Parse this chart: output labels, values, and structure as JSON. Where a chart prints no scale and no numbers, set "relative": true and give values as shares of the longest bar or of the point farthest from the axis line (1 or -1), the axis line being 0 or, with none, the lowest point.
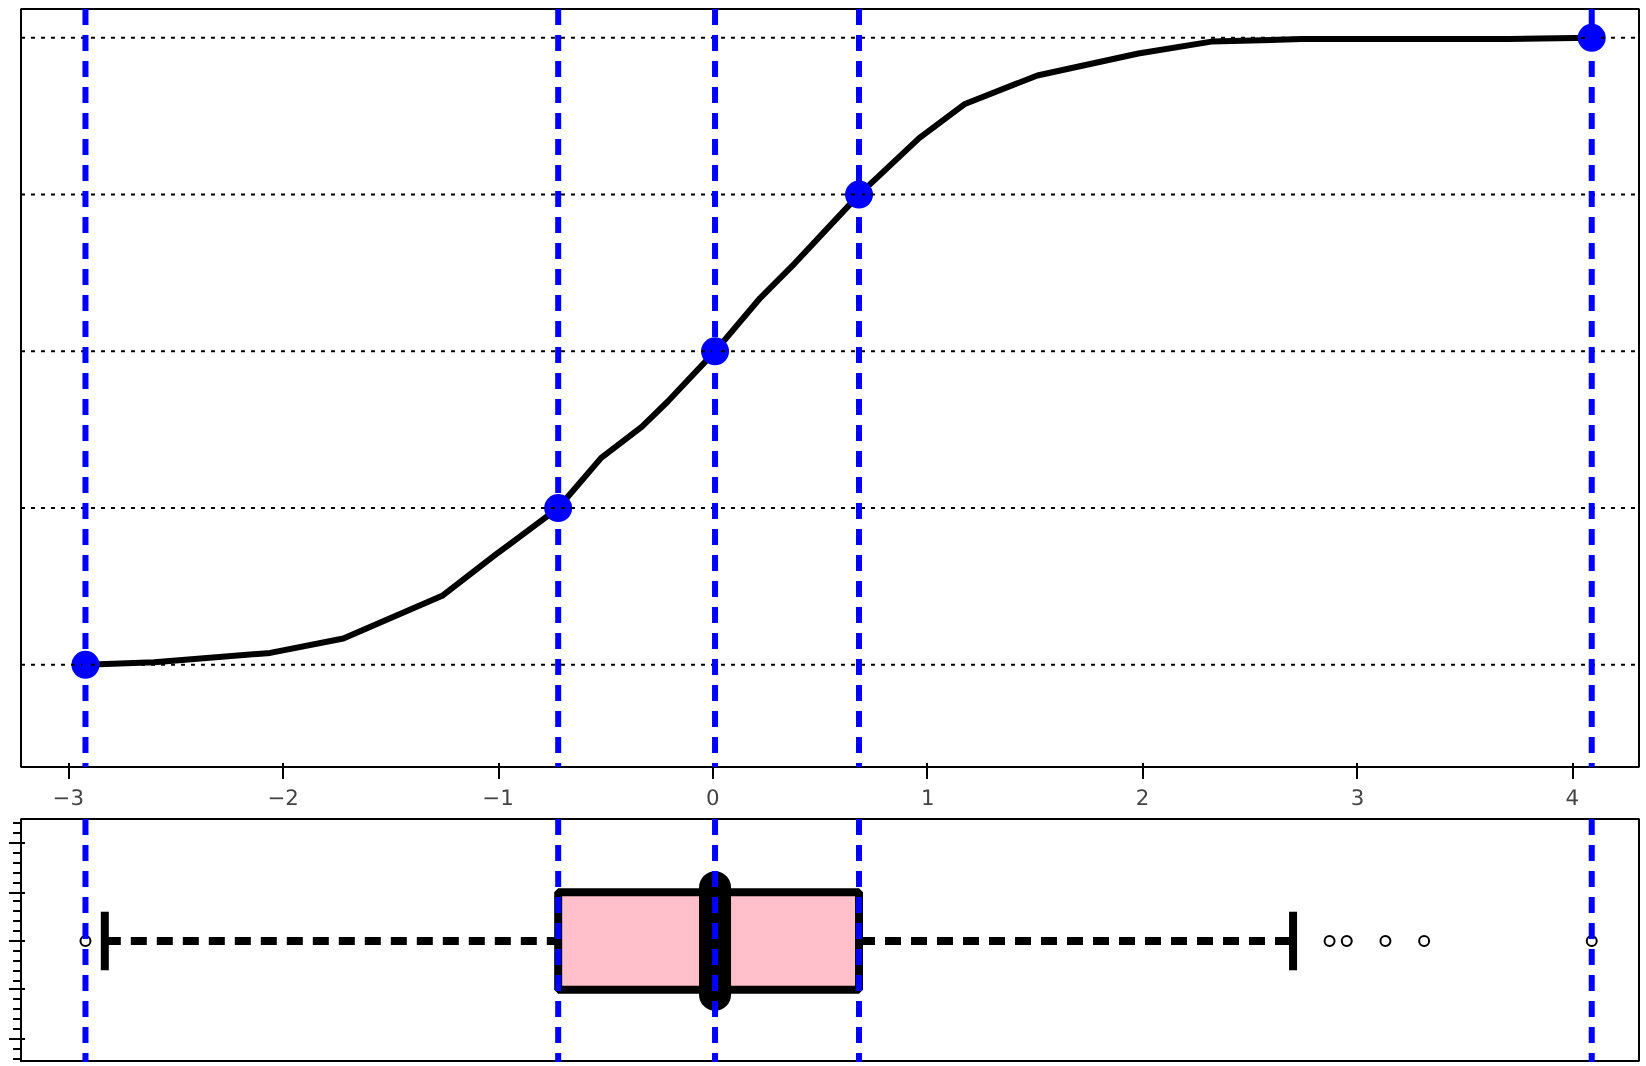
{
  "chart_data": [
    {
      "type": "line",
      "relative": true,
      "x": [
        -2.92,
        -2.6,
        -2.06,
        -1.72,
        -1.26,
        -1.01,
        -0.72,
        -0.52,
        -0.33,
        -0.21,
        0.01,
        0.22,
        0.38,
        0.68,
        0.96,
        1.17,
        1.51,
        1.98,
        2.32,
        2.74,
        3.7,
        4.09
      ],
      "series": [
        {
          "color": "#000000",
          "values": [
            0,
            0.004,
            0.019,
            0.042,
            0.11,
            0.176,
            0.25,
            0.33,
            0.38,
            0.42,
            0.5,
            0.585,
            0.64,
            0.75,
            0.84,
            0.894,
            0.94,
            0.975,
            0.994,
            0.998,
            0.998,
            1
          ]
        },
        {
          "type": "scatter",
          "color": "#0000ff",
          "marker": "circle",
          "x": [
            -2.92,
            -0.72,
            0.01,
            0.68,
            4.09
          ],
          "values": [
            0,
            0.25,
            0.5,
            0.75,
            1
          ]
        }
      ],
      "xlim": [
        -3.22,
        4.31
      ],
      "xticks": [
        -3,
        -2,
        -1,
        0,
        1,
        2,
        3,
        4
      ],
      "tick_labels": "x",
      "ref_lines": [
        {
          "axis": "y",
          "value": 0,
          "color": "#000000",
          "line_style": "dotted"
        },
        {
          "axis": "y",
          "value": 0.25,
          "color": "#000000",
          "line_style": "dotted"
        },
        {
          "axis": "y",
          "value": 0.5,
          "color": "#000000",
          "line_style": "dotted"
        },
        {
          "axis": "y",
          "value": 0.75,
          "color": "#000000",
          "line_style": "dotted"
        },
        {
          "axis": "y",
          "value": 1,
          "color": "#000000",
          "line_style": "dotted"
        },
        {
          "axis": "x",
          "value": -2.92,
          "color": "#0000ff",
          "line_style": "dashed"
        },
        {
          "axis": "x",
          "value": -0.72,
          "color": "#0000ff",
          "line_style": "dashed"
        },
        {
          "axis": "x",
          "value": 0.01,
          "color": "#0000ff",
          "line_style": "dashed"
        },
        {
          "axis": "x",
          "value": 0.68,
          "color": "#0000ff",
          "line_style": "dashed"
        },
        {
          "axis": "x",
          "value": 4.09,
          "color": "#0000ff",
          "line_style": "dashed"
        }
      ]
    },
    {
      "type": "box",
      "orientation": "horizontal",
      "categories": [
        null
      ],
      "color": "#ffc0cb",
      "line_style": "dashed",
      "xlim": [
        -3.22,
        4.31
      ],
      "tick_labels": false,
      "boxes": [
        {
          "low": -2.83,
          "q1": -0.72,
          "median": 0.01,
          "q3": 0.68,
          "high": 2.7,
          "outliers": [
            -2.92,
            2.87,
            2.95,
            3.13,
            3.31,
            4.09
          ]
        }
      ],
      "ref_lines": [
        {
          "axis": "x",
          "value": -2.92,
          "color": "#0000ff",
          "line_style": "dashed"
        },
        {
          "axis": "x",
          "value": -0.72,
          "color": "#0000ff",
          "line_style": "dashed"
        },
        {
          "axis": "x",
          "value": 0.01,
          "color": "#0000ff",
          "line_style": "dashed"
        },
        {
          "axis": "x",
          "value": 0.68,
          "color": "#0000ff",
          "line_style": "dashed"
        },
        {
          "axis": "x",
          "value": 4.09,
          "color": "#0000ff",
          "line_style": "dashed"
        }
      ]
    }
  ]
}
